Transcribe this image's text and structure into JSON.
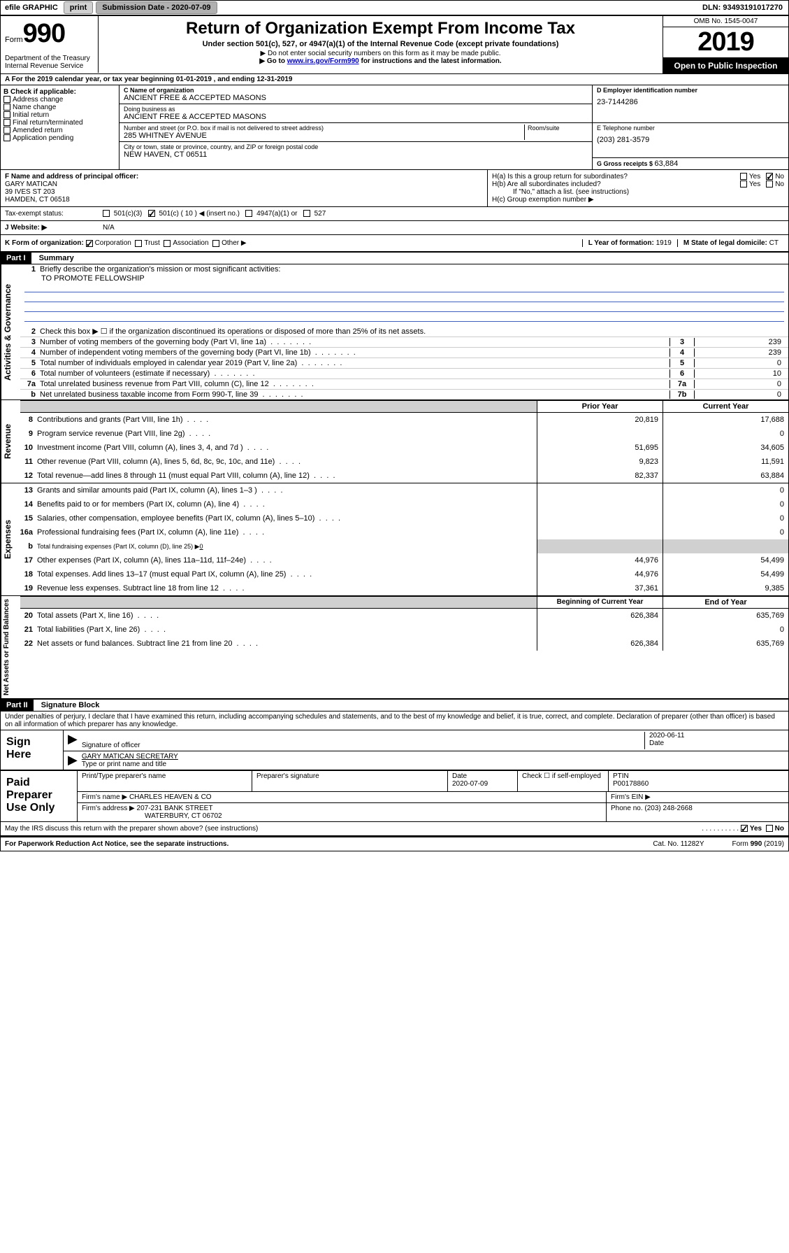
{
  "topbar": {
    "efile_label": "efile GRAPHIC",
    "print_btn": "print",
    "submission_label": "Submission Date - ",
    "submission_date": "2020-07-09",
    "dln_label": "DLN: ",
    "dln": "93493191017270"
  },
  "header": {
    "form_label": "Form",
    "form_num": "990",
    "title": "Return of Organization Exempt From Income Tax",
    "subtitle": "Under section 501(c), 527, or 4947(a)(1) of the Internal Revenue Code (except private foundations)",
    "note1": "▶ Do not enter social security numbers on this form as it may be made public.",
    "note2_pre": "▶ Go to ",
    "note2_link": "www.irs.gov/Form990",
    "note2_post": " for instructions and the latest information.",
    "dept1": "Department of the Treasury",
    "dept2": "Internal Revenue Service",
    "omb": "OMB No. 1545-0047",
    "year": "2019",
    "open_public": "Open to Public Inspection"
  },
  "row_a": {
    "text_pre": "A For the 2019 calendar year, or tax year beginning ",
    "begin": "01-01-2019",
    "mid": " , and ending ",
    "end": "12-31-2019"
  },
  "col_b": {
    "header": "B Check if applicable:",
    "items": [
      "Address change",
      "Name change",
      "Initial return",
      "Final return/terminated",
      "Amended return",
      "Application pending"
    ]
  },
  "col_c": {
    "name_label": "C Name of organization",
    "name": "ANCIENT FREE & ACCEPTED MASONS",
    "dba_label": "Doing business as",
    "dba": "ANCIENT FREE & ACCEPTED MASONS",
    "addr_label": "Number and street (or P.O. box if mail is not delivered to street address)",
    "room_label": "Room/suite",
    "addr": "285 WHITNEY AVENUE",
    "city_label": "City or town, state or province, country, and ZIP or foreign postal code",
    "city": "NEW HAVEN, CT   06511"
  },
  "col_d": {
    "ein_label": "D Employer identification number",
    "ein": "23-7144286",
    "phone_label": "E Telephone number",
    "phone": "(203) 281-3579",
    "gross_label": "G Gross receipts $ ",
    "gross": "63,884"
  },
  "col_f": {
    "label": "F Name and address of principal officer:",
    "name": "GARY MATICAN",
    "addr1": "39 IVES ST 203",
    "addr2": "HAMDEN, CT   06518"
  },
  "col_h": {
    "ha_label": "H(a)  Is this a group return for subordinates?",
    "hb_label": "H(b)  Are all subordinates included?",
    "hb_note": "If \"No,\" attach a list. (see instructions)",
    "hc_label": "H(c)  Group exemption number ▶",
    "yes": "Yes",
    "no": "No"
  },
  "tax_exempt": {
    "label": "Tax-exempt status:",
    "c3": "501(c)(3)",
    "c_pre": "501(c) ( ",
    "c_num": "10",
    "c_post": " ) ◀ (insert no.)",
    "a1": "4947(a)(1) or",
    "527": "527"
  },
  "row_j": {
    "label": "J  Website: ▶",
    "val": "N/A"
  },
  "row_k": {
    "label": "K Form of organization:",
    "corp": "Corporation",
    "trust": "Trust",
    "assoc": "Association",
    "other": "Other ▶",
    "l_label": "L Year of formation: ",
    "l_val": "1919",
    "m_label": "M State of legal domicile: ",
    "m_val": "CT"
  },
  "part1": {
    "header": "Part I",
    "title": "Summary",
    "governance_label": "Activities & Governance",
    "revenue_label": "Revenue",
    "expenses_label": "Expenses",
    "netassets_label": "Net Assets or Fund Balances",
    "line1_label": "Briefly describe the organization's mission or most significant activities:",
    "line1_val": "TO PROMOTE FELLOWSHIP",
    "line2": "Check this box ▶ ☐  if the organization discontinued its operations or disposed of more than 25% of its net assets.",
    "lines_gov": [
      {
        "n": "3",
        "t": "Number of voting members of the governing body (Part VI, line 1a)",
        "box": "3",
        "v": "239"
      },
      {
        "n": "4",
        "t": "Number of independent voting members of the governing body (Part VI, line 1b)",
        "box": "4",
        "v": "239"
      },
      {
        "n": "5",
        "t": "Total number of individuals employed in calendar year 2019 (Part V, line 2a)",
        "box": "5",
        "v": "0"
      },
      {
        "n": "6",
        "t": "Total number of volunteers (estimate if necessary)",
        "box": "6",
        "v": "10"
      },
      {
        "n": "7a",
        "t": "Total unrelated business revenue from Part VIII, column (C), line 12",
        "box": "7a",
        "v": "0"
      },
      {
        "n": "b",
        "t": "Net unrelated business taxable income from Form 990-T, line 39",
        "box": "7b",
        "v": "0"
      }
    ],
    "prior_year": "Prior Year",
    "current_year": "Current Year",
    "lines_rev": [
      {
        "n": "8",
        "t": "Contributions and grants (Part VIII, line 1h)",
        "p": "20,819",
        "c": "17,688"
      },
      {
        "n": "9",
        "t": "Program service revenue (Part VIII, line 2g)",
        "p": "",
        "c": "0"
      },
      {
        "n": "10",
        "t": "Investment income (Part VIII, column (A), lines 3, 4, and 7d )",
        "p": "51,695",
        "c": "34,605"
      },
      {
        "n": "11",
        "t": "Other revenue (Part VIII, column (A), lines 5, 6d, 8c, 9c, 10c, and 11e)",
        "p": "9,823",
        "c": "11,591"
      },
      {
        "n": "12",
        "t": "Total revenue—add lines 8 through 11 (must equal Part VIII, column (A), line 12)",
        "p": "82,337",
        "c": "63,884"
      }
    ],
    "lines_exp": [
      {
        "n": "13",
        "t": "Grants and similar amounts paid (Part IX, column (A), lines 1–3 )",
        "p": "",
        "c": "0"
      },
      {
        "n": "14",
        "t": "Benefits paid to or for members (Part IX, column (A), line 4)",
        "p": "",
        "c": "0"
      },
      {
        "n": "15",
        "t": "Salaries, other compensation, employee benefits (Part IX, column (A), lines 5–10)",
        "p": "",
        "c": "0"
      },
      {
        "n": "16a",
        "t": "Professional fundraising fees (Part IX, column (A), line 11e)",
        "p": "",
        "c": "0"
      }
    ],
    "line16b": "Total fundraising expenses (Part IX, column (D), line 25) ▶",
    "line16b_val": "0",
    "lines_exp2": [
      {
        "n": "17",
        "t": "Other expenses (Part IX, column (A), lines 11a–11d, 11f–24e)",
        "p": "44,976",
        "c": "54,499"
      },
      {
        "n": "18",
        "t": "Total expenses. Add lines 13–17 (must equal Part IX, column (A), line 25)",
        "p": "44,976",
        "c": "54,499"
      },
      {
        "n": "19",
        "t": "Revenue less expenses. Subtract line 18 from line 12",
        "p": "37,361",
        "c": "9,385"
      }
    ],
    "begin_year": "Beginning of Current Year",
    "end_year": "End of Year",
    "lines_net": [
      {
        "n": "20",
        "t": "Total assets (Part X, line 16)",
        "p": "626,384",
        "c": "635,769"
      },
      {
        "n": "21",
        "t": "Total liabilities (Part X, line 26)",
        "p": "",
        "c": "0"
      },
      {
        "n": "22",
        "t": "Net assets or fund balances. Subtract line 21 from line 20",
        "p": "626,384",
        "c": "635,769"
      }
    ]
  },
  "part2": {
    "header": "Part II",
    "title": "Signature Block",
    "perjury": "Under penalties of perjury, I declare that I have examined this return, including accompanying schedules and statements, and to the best of my knowledge and belief, it is true, correct, and complete. Declaration of preparer (other than officer) is based on all information of which preparer has any knowledge.",
    "sign_here": "Sign Here",
    "sig_officer": "Signature of officer",
    "sig_date": "2020-06-11",
    "date_label": "Date",
    "sig_name": "GARY MATICAN  SECRETARY",
    "sig_name_label": "Type or print name and title",
    "paid_label": "Paid Preparer Use Only",
    "prep_name_label": "Print/Type preparer's name",
    "prep_sig_label": "Preparer's signature",
    "prep_date_label": "Date",
    "prep_date": "2020-07-09",
    "check_self": "Check ☐ if self-employed",
    "ptin_label": "PTIN",
    "ptin": "P00178860",
    "firm_name_label": "Firm's name      ▶ ",
    "firm_name": "CHARLES HEAVEN & CO",
    "firm_ein_label": "Firm's EIN ▶",
    "firm_addr_label": "Firm's address ▶ ",
    "firm_addr1": "207-231 BANK STREET",
    "firm_addr2": "WATERBURY, CT   06702",
    "firm_phone_label": "Phone no. ",
    "firm_phone": "(203) 248-2668",
    "discuss": "May the IRS discuss this return with the preparer shown above? (see instructions)",
    "yes": "Yes",
    "no": "No"
  },
  "footer": {
    "pra": "For Paperwork Reduction Act Notice, see the separate instructions.",
    "cat": "Cat. No. 11282Y",
    "form": "Form 990 (2019)"
  }
}
